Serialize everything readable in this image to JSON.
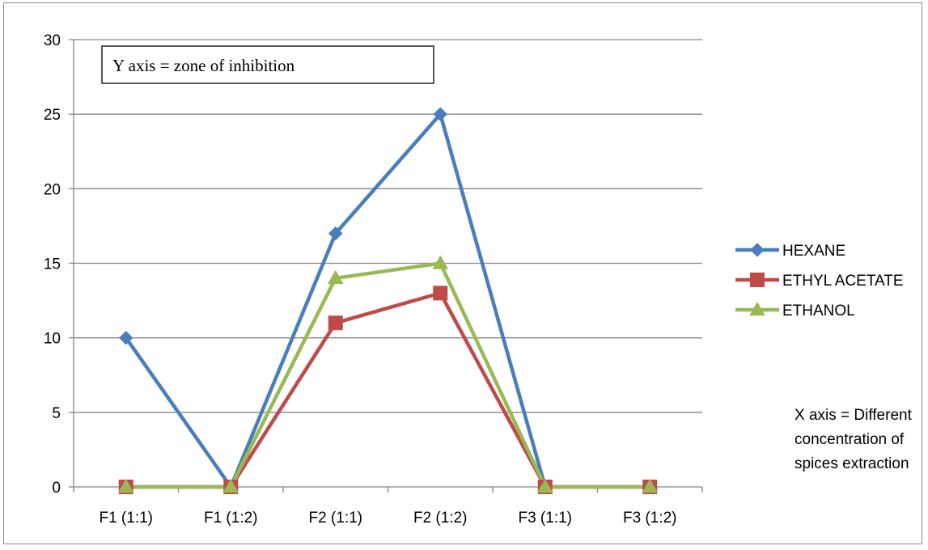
{
  "chart_data": {
    "type": "line",
    "categories": [
      "F1 (1:1)",
      "F1 (1:2)",
      "F2 (1:1)",
      "F2 (1:2)",
      "F3 (1:1)",
      "F3 (1:2)"
    ],
    "ylim": [
      0,
      30
    ],
    "yticks": [
      0,
      5,
      10,
      15,
      20,
      25,
      30
    ],
    "grid": true,
    "legend_position": "right",
    "series": [
      {
        "name": "HEXANE",
        "values": [
          10,
          0,
          17,
          25,
          0,
          null
        ],
        "color": "#4A7EBB",
        "marker": "diamond"
      },
      {
        "name": "ETHYL ACETATE",
        "values": [
          0,
          0,
          11,
          13,
          0,
          0
        ],
        "color": "#BE4B48",
        "marker": "square"
      },
      {
        "name": "ETHANOL",
        "values": [
          0,
          0,
          14,
          15,
          0,
          0
        ],
        "color": "#98B954",
        "marker": "triangle"
      }
    ],
    "annotations": {
      "y_axis_box": "Y axis = zone of inhibition",
      "x_axis_note": [
        "X axis = Different",
        "concentration of",
        "spices extraction"
      ]
    }
  }
}
